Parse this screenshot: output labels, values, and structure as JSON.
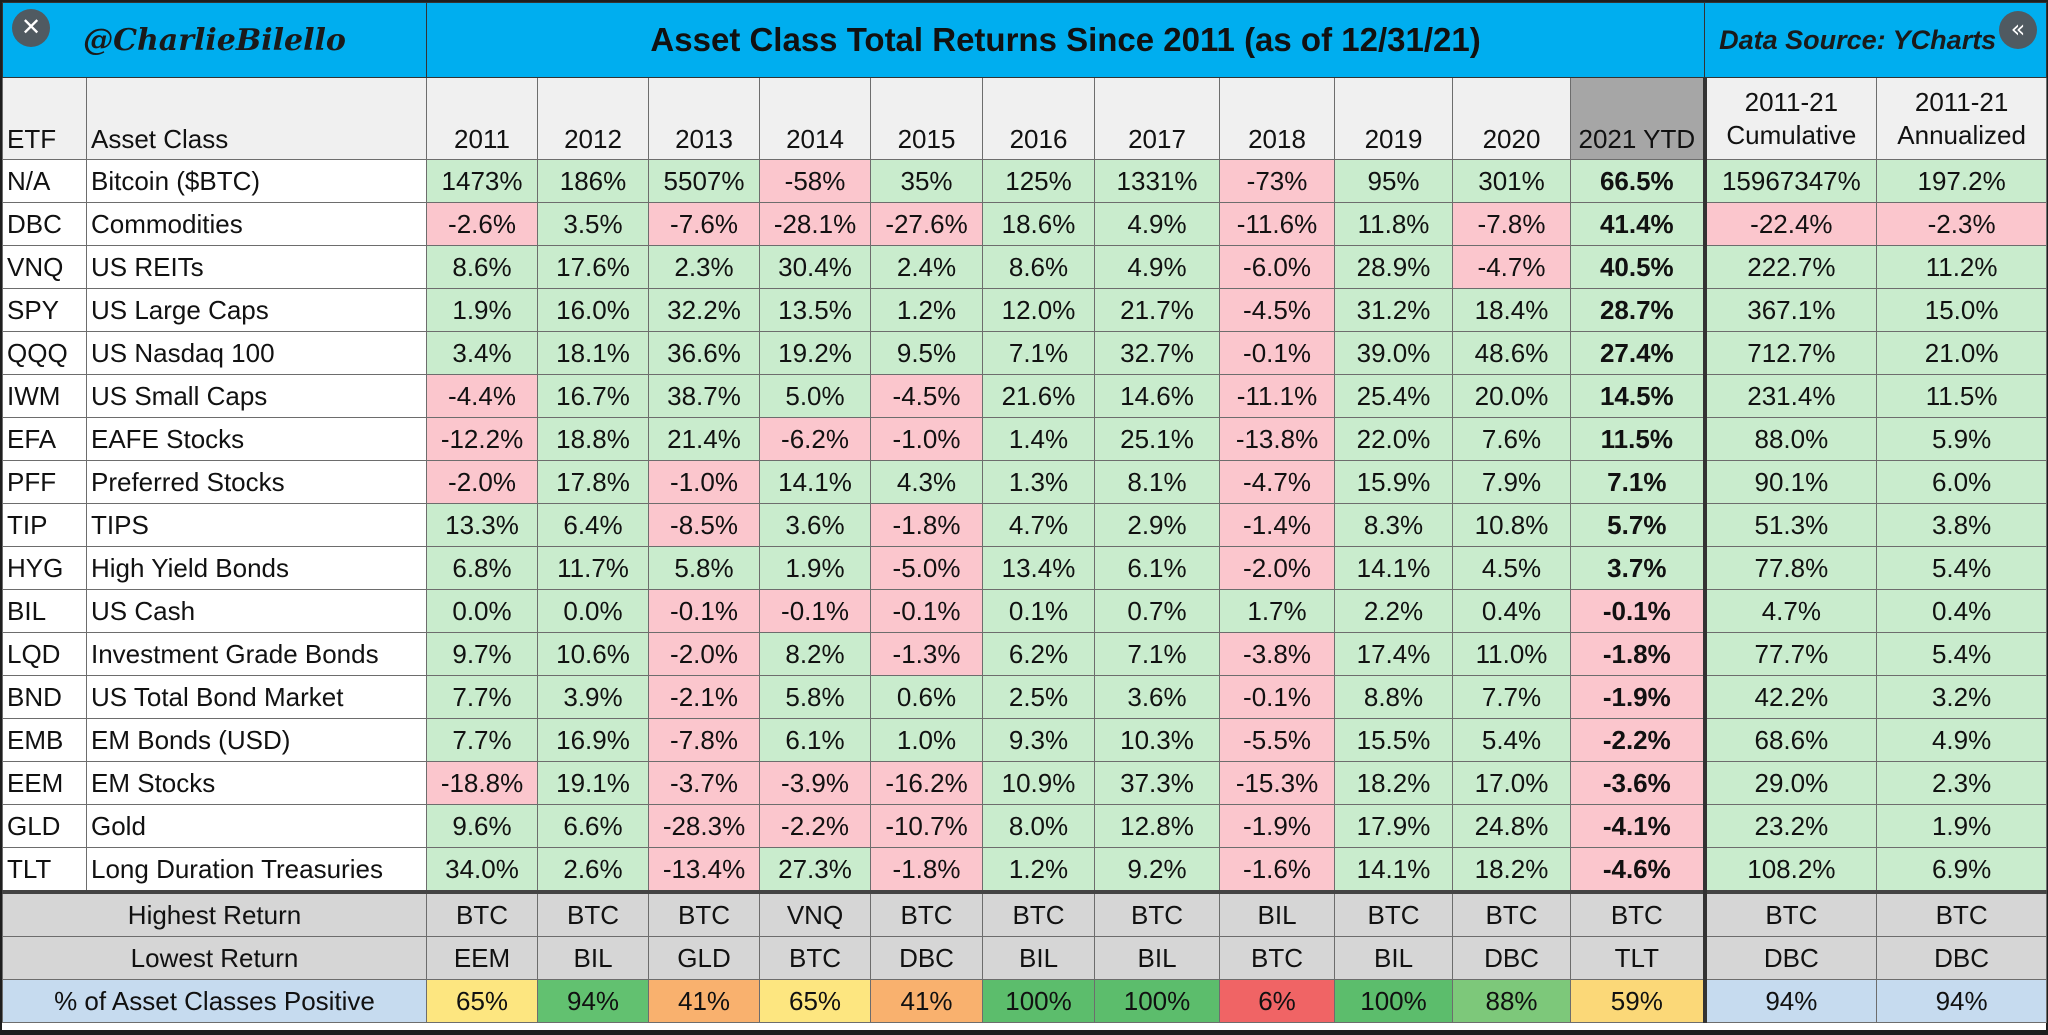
{
  "header": {
    "handle": "@CharlieBilello",
    "title": "Asset Class Total Returns Since 2011 (as of 12/31/21)",
    "source": "Data Source: YCharts"
  },
  "controls": {
    "close_icon": "close-icon",
    "collapse_icon": "double-chevron-left-icon",
    "close_glyph": "✕",
    "collapse_glyph": "«"
  },
  "colors": {
    "title_bar": "#00aeef",
    "positive": "#c9eccd",
    "negative": "#fbc6cd",
    "ytd_header": "#a6a6a6",
    "summary_row": "#d6d6d6"
  },
  "chart_data": {
    "type": "table",
    "columns": {
      "etf": "ETF",
      "asset_class": "Asset Class",
      "years": [
        "2011",
        "2012",
        "2013",
        "2014",
        "2015",
        "2016",
        "2017",
        "2018",
        "2019",
        "2020",
        "2021 YTD"
      ],
      "cumulative": [
        "2011-21",
        "Cumulative"
      ],
      "annualized": [
        "2011-21",
        "Annualized"
      ]
    },
    "rows": [
      {
        "etf": "N/A",
        "asset_class": "Bitcoin ($BTC)",
        "values": [
          "1473%",
          "186%",
          "5507%",
          "-58%",
          "35%",
          "125%",
          "1331%",
          "-73%",
          "95%",
          "301%",
          "66.5%"
        ],
        "cumulative": "15967347%",
        "annualized": "197.2%"
      },
      {
        "etf": "DBC",
        "asset_class": "Commodities",
        "values": [
          "-2.6%",
          "3.5%",
          "-7.6%",
          "-28.1%",
          "-27.6%",
          "18.6%",
          "4.9%",
          "-11.6%",
          "11.8%",
          "-7.8%",
          "41.4%"
        ],
        "cumulative": "-22.4%",
        "annualized": "-2.3%"
      },
      {
        "etf": "VNQ",
        "asset_class": "US REITs",
        "values": [
          "8.6%",
          "17.6%",
          "2.3%",
          "30.4%",
          "2.4%",
          "8.6%",
          "4.9%",
          "-6.0%",
          "28.9%",
          "-4.7%",
          "40.5%"
        ],
        "cumulative": "222.7%",
        "annualized": "11.2%"
      },
      {
        "etf": "SPY",
        "asset_class": "US Large Caps",
        "values": [
          "1.9%",
          "16.0%",
          "32.2%",
          "13.5%",
          "1.2%",
          "12.0%",
          "21.7%",
          "-4.5%",
          "31.2%",
          "18.4%",
          "28.7%"
        ],
        "cumulative": "367.1%",
        "annualized": "15.0%"
      },
      {
        "etf": "QQQ",
        "asset_class": "US Nasdaq 100",
        "values": [
          "3.4%",
          "18.1%",
          "36.6%",
          "19.2%",
          "9.5%",
          "7.1%",
          "32.7%",
          "-0.1%",
          "39.0%",
          "48.6%",
          "27.4%"
        ],
        "cumulative": "712.7%",
        "annualized": "21.0%"
      },
      {
        "etf": "IWM",
        "asset_class": "US Small Caps",
        "values": [
          "-4.4%",
          "16.7%",
          "38.7%",
          "5.0%",
          "-4.5%",
          "21.6%",
          "14.6%",
          "-11.1%",
          "25.4%",
          "20.0%",
          "14.5%"
        ],
        "cumulative": "231.4%",
        "annualized": "11.5%"
      },
      {
        "etf": "EFA",
        "asset_class": "EAFE Stocks",
        "values": [
          "-12.2%",
          "18.8%",
          "21.4%",
          "-6.2%",
          "-1.0%",
          "1.4%",
          "25.1%",
          "-13.8%",
          "22.0%",
          "7.6%",
          "11.5%"
        ],
        "cumulative": "88.0%",
        "annualized": "5.9%"
      },
      {
        "etf": "PFF",
        "asset_class": "Preferred Stocks",
        "values": [
          "-2.0%",
          "17.8%",
          "-1.0%",
          "14.1%",
          "4.3%",
          "1.3%",
          "8.1%",
          "-4.7%",
          "15.9%",
          "7.9%",
          "7.1%"
        ],
        "cumulative": "90.1%",
        "annualized": "6.0%"
      },
      {
        "etf": "TIP",
        "asset_class": "TIPS",
        "values": [
          "13.3%",
          "6.4%",
          "-8.5%",
          "3.6%",
          "-1.8%",
          "4.7%",
          "2.9%",
          "-1.4%",
          "8.3%",
          "10.8%",
          "5.7%"
        ],
        "cumulative": "51.3%",
        "annualized": "3.8%"
      },
      {
        "etf": "HYG",
        "asset_class": "High Yield Bonds",
        "values": [
          "6.8%",
          "11.7%",
          "5.8%",
          "1.9%",
          "-5.0%",
          "13.4%",
          "6.1%",
          "-2.0%",
          "14.1%",
          "4.5%",
          "3.7%"
        ],
        "cumulative": "77.8%",
        "annualized": "5.4%"
      },
      {
        "etf": "BIL",
        "asset_class": "US Cash",
        "values": [
          "0.0%",
          "0.0%",
          "-0.1%",
          "-0.1%",
          "-0.1%",
          "0.1%",
          "0.7%",
          "1.7%",
          "2.2%",
          "0.4%",
          "-0.1%"
        ],
        "cumulative": "4.7%",
        "annualized": "0.4%"
      },
      {
        "etf": "LQD",
        "asset_class": "Investment Grade Bonds",
        "values": [
          "9.7%",
          "10.6%",
          "-2.0%",
          "8.2%",
          "-1.3%",
          "6.2%",
          "7.1%",
          "-3.8%",
          "17.4%",
          "11.0%",
          "-1.8%"
        ],
        "cumulative": "77.7%",
        "annualized": "5.4%"
      },
      {
        "etf": "BND",
        "asset_class": "US Total Bond Market",
        "values": [
          "7.7%",
          "3.9%",
          "-2.1%",
          "5.8%",
          "0.6%",
          "2.5%",
          "3.6%",
          "-0.1%",
          "8.8%",
          "7.7%",
          "-1.9%"
        ],
        "cumulative": "42.2%",
        "annualized": "3.2%"
      },
      {
        "etf": "EMB",
        "asset_class": "EM Bonds (USD)",
        "values": [
          "7.7%",
          "16.9%",
          "-7.8%",
          "6.1%",
          "1.0%",
          "9.3%",
          "10.3%",
          "-5.5%",
          "15.5%",
          "5.4%",
          "-2.2%"
        ],
        "cumulative": "68.6%",
        "annualized": "4.9%"
      },
      {
        "etf": "EEM",
        "asset_class": "EM Stocks",
        "values": [
          "-18.8%",
          "19.1%",
          "-3.7%",
          "-3.9%",
          "-16.2%",
          "10.9%",
          "37.3%",
          "-15.3%",
          "18.2%",
          "17.0%",
          "-3.6%"
        ],
        "cumulative": "29.0%",
        "annualized": "2.3%"
      },
      {
        "etf": "GLD",
        "asset_class": "Gold",
        "values": [
          "9.6%",
          "6.6%",
          "-28.3%",
          "-2.2%",
          "-10.7%",
          "8.0%",
          "12.8%",
          "-1.9%",
          "17.9%",
          "24.8%",
          "-4.1%"
        ],
        "cumulative": "23.2%",
        "annualized": "1.9%"
      },
      {
        "etf": "TLT",
        "asset_class": "Long Duration Treasuries",
        "values": [
          "34.0%",
          "2.6%",
          "-13.4%",
          "27.3%",
          "-1.8%",
          "1.2%",
          "9.2%",
          "-1.6%",
          "14.1%",
          "18.2%",
          "-4.6%"
        ],
        "cumulative": "108.2%",
        "annualized": "6.9%"
      }
    ],
    "summary": [
      {
        "label": "Highest Return",
        "values": [
          "BTC",
          "BTC",
          "BTC",
          "VNQ",
          "BTC",
          "BTC",
          "BTC",
          "BIL",
          "BTC",
          "BTC",
          "BTC"
        ],
        "cumulative": "BTC",
        "annualized": "BTC"
      },
      {
        "label": "Lowest Return",
        "values": [
          "EEM",
          "BIL",
          "GLD",
          "BTC",
          "DBC",
          "BIL",
          "BIL",
          "BTC",
          "BIL",
          "DBC",
          "TLT"
        ],
        "cumulative": "DBC",
        "annualized": "DBC"
      },
      {
        "label": "% of Asset Classes Positive",
        "values": [
          "65%",
          "94%",
          "41%",
          "65%",
          "41%",
          "100%",
          "100%",
          "6%",
          "100%",
          "88%",
          "59%"
        ],
        "cumulative": "94%",
        "annualized": "94%",
        "colors": [
          "#fde680",
          "#62c170",
          "#f9b16e",
          "#fde680",
          "#f9b16e",
          "#5cbd6c",
          "#5cbd6c",
          "#f06465",
          "#5cbd6c",
          "#7dc87a",
          "#fbd878"
        ],
        "cum_color": "#c6dbef",
        "ann_color": "#c6dbef",
        "label_color": "#c6dbef"
      }
    ]
  }
}
